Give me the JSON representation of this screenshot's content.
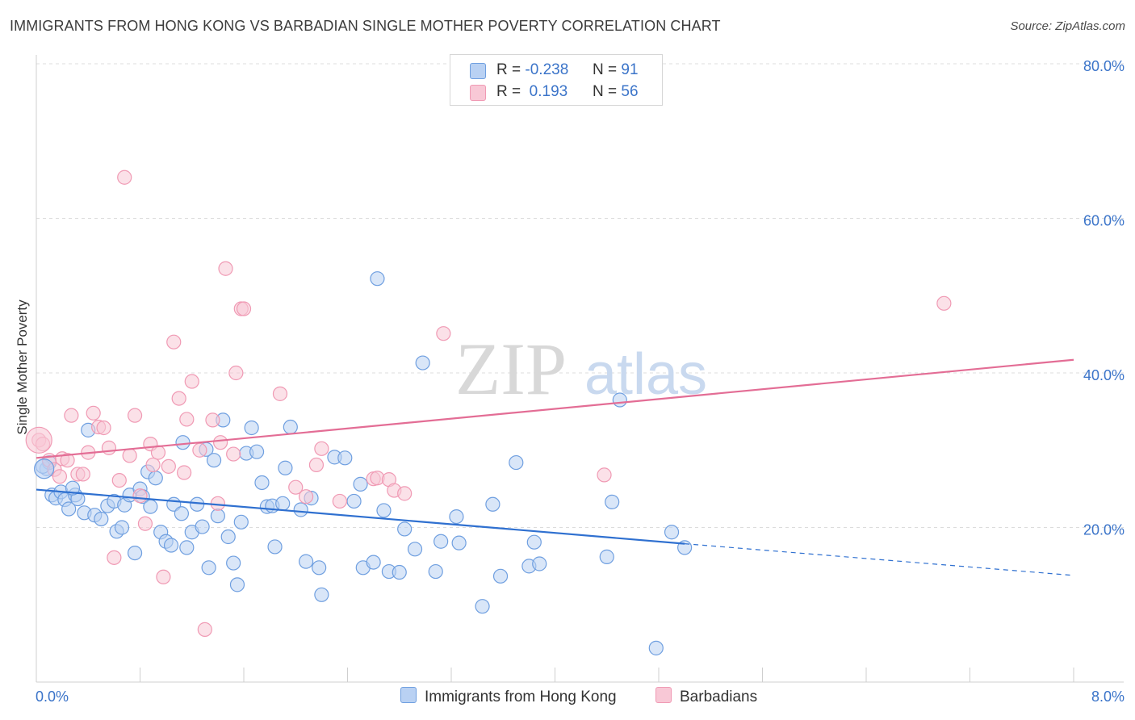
{
  "header": {
    "title": "IMMIGRANTS FROM HONG KONG VS BARBADIAN SINGLE MOTHER POVERTY CORRELATION CHART",
    "source": "Source: ZipAtlas.com"
  },
  "legend_top": {
    "rows": [
      {
        "r_label": "R =",
        "r_value": "-0.238",
        "n_label": "N =",
        "n_value": "91"
      },
      {
        "r_label": "R =",
        "r_value": "0.193",
        "n_label": "N =",
        "n_value": "56"
      }
    ]
  },
  "watermark": {
    "zip": "ZIP",
    "atlas": "atlas"
  },
  "chart_data": {
    "type": "scatter",
    "title": "IMMIGRANTS FROM HONG KONG VS BARBADIAN SINGLE MOTHER POVERTY CORRELATION CHART",
    "ylabel": "Single Mother Poverty",
    "xlabel": "",
    "xlim": [
      0,
      8
    ],
    "ylim": [
      0,
      80
    ],
    "x_tick_labels": [
      "0.0%",
      "8.0%"
    ],
    "y_tick_labels": [
      "20.0%",
      "40.0%",
      "60.0%",
      "80.0%"
    ],
    "y_ticks": [
      20,
      40,
      60,
      80
    ],
    "grid": true,
    "legend_position": "top-center",
    "series": [
      {
        "name": "Immigrants from Hong Kong",
        "color": "#6f9fe0",
        "fill": "#b9d1f3",
        "trend": {
          "x0": 0,
          "y0": 24.9,
          "x1": 5.0,
          "y1": 17.9,
          "dashed_to_x": 8.0,
          "dashed_to_y": 13.8
        },
        "trend_color": "#2f70d0",
        "points": [
          [
            0.08,
            27.6
          ],
          [
            0.12,
            24.2
          ],
          [
            0.15,
            23.8
          ],
          [
            0.19,
            24.6
          ],
          [
            0.22,
            23.6
          ],
          [
            0.25,
            22.4
          ],
          [
            0.3,
            24.2
          ],
          [
            0.32,
            23.7
          ],
          [
            0.37,
            21.9
          ],
          [
            0.4,
            32.6
          ],
          [
            0.45,
            21.6
          ],
          [
            0.5,
            21.1
          ],
          [
            0.55,
            22.8
          ],
          [
            0.6,
            23.4
          ],
          [
            0.62,
            19.5
          ],
          [
            0.66,
            20.0
          ],
          [
            0.68,
            22.9
          ],
          [
            0.72,
            24.2
          ],
          [
            0.76,
            16.7
          ],
          [
            0.8,
            25.0
          ],
          [
            0.82,
            24.0
          ],
          [
            0.86,
            27.2
          ],
          [
            0.88,
            22.7
          ],
          [
            0.92,
            26.4
          ],
          [
            0.96,
            19.4
          ],
          [
            1.0,
            18.2
          ],
          [
            1.04,
            17.7
          ],
          [
            1.06,
            23.0
          ],
          [
            1.12,
            21.8
          ],
          [
            1.13,
            31.0
          ],
          [
            1.16,
            17.4
          ],
          [
            1.2,
            19.4
          ],
          [
            1.24,
            23.0
          ],
          [
            1.28,
            20.1
          ],
          [
            1.31,
            30.1
          ],
          [
            1.33,
            14.8
          ],
          [
            1.37,
            28.7
          ],
          [
            1.4,
            21.5
          ],
          [
            1.44,
            33.9
          ],
          [
            1.48,
            18.8
          ],
          [
            1.52,
            15.4
          ],
          [
            1.55,
            12.6
          ],
          [
            1.58,
            20.7
          ],
          [
            1.62,
            29.6
          ],
          [
            1.66,
            32.9
          ],
          [
            1.7,
            29.8
          ],
          [
            1.74,
            25.8
          ],
          [
            1.78,
            22.7
          ],
          [
            1.82,
            22.8
          ],
          [
            1.84,
            17.5
          ],
          [
            1.9,
            23.1
          ],
          [
            1.92,
            27.7
          ],
          [
            1.96,
            33.0
          ],
          [
            2.04,
            22.3
          ],
          [
            2.08,
            15.6
          ],
          [
            2.12,
            23.8
          ],
          [
            2.18,
            14.8
          ],
          [
            2.2,
            11.3
          ],
          [
            2.3,
            29.1
          ],
          [
            2.38,
            29.0
          ],
          [
            2.45,
            23.4
          ],
          [
            2.5,
            25.6
          ],
          [
            2.52,
            14.8
          ],
          [
            2.6,
            15.5
          ],
          [
            2.63,
            52.2
          ],
          [
            2.68,
            22.2
          ],
          [
            2.72,
            14.3
          ],
          [
            2.8,
            14.2
          ],
          [
            2.84,
            19.8
          ],
          [
            2.92,
            17.2
          ],
          [
            2.98,
            41.3
          ],
          [
            3.08,
            14.3
          ],
          [
            3.12,
            18.2
          ],
          [
            3.24,
            21.4
          ],
          [
            3.26,
            18.0
          ],
          [
            3.44,
            9.8
          ],
          [
            3.52,
            23.0
          ],
          [
            3.58,
            13.7
          ],
          [
            3.7,
            28.4
          ],
          [
            3.8,
            15.0
          ],
          [
            3.84,
            18.1
          ],
          [
            3.88,
            15.3
          ],
          [
            4.4,
            16.2
          ],
          [
            4.44,
            23.3
          ],
          [
            4.5,
            36.5
          ],
          [
            4.78,
            4.4
          ],
          [
            4.9,
            19.4
          ],
          [
            5.0,
            17.4
          ],
          [
            0.1,
            28.4
          ],
          [
            0.05,
            27.9
          ],
          [
            0.28,
            25.1
          ]
        ]
      },
      {
        "name": "Barbadians",
        "color": "#f09ab4",
        "fill": "#f8c8d6",
        "trend": {
          "x0": 0,
          "y0": 29.0,
          "x1": 8.0,
          "y1": 41.7
        },
        "trend_color": "#e36d95",
        "points": [
          [
            0.02,
            31.3
          ],
          [
            0.05,
            30.8
          ],
          [
            0.1,
            28.7
          ],
          [
            0.14,
            27.5
          ],
          [
            0.18,
            26.6
          ],
          [
            0.2,
            28.9
          ],
          [
            0.24,
            28.7
          ],
          [
            0.27,
            34.5
          ],
          [
            0.32,
            26.9
          ],
          [
            0.36,
            26.9
          ],
          [
            0.4,
            29.7
          ],
          [
            0.44,
            34.8
          ],
          [
            0.48,
            33.0
          ],
          [
            0.52,
            32.9
          ],
          [
            0.56,
            30.3
          ],
          [
            0.6,
            16.1
          ],
          [
            0.64,
            26.1
          ],
          [
            0.68,
            65.3
          ],
          [
            0.72,
            29.3
          ],
          [
            0.76,
            34.5
          ],
          [
            0.8,
            24.1
          ],
          [
            0.84,
            20.5
          ],
          [
            0.88,
            30.8
          ],
          [
            0.9,
            28.1
          ],
          [
            0.94,
            29.7
          ],
          [
            0.98,
            13.6
          ],
          [
            1.02,
            27.9
          ],
          [
            1.06,
            44.0
          ],
          [
            1.1,
            36.7
          ],
          [
            1.14,
            27.1
          ],
          [
            1.16,
            34.0
          ],
          [
            1.2,
            38.9
          ],
          [
            1.26,
            30.0
          ],
          [
            1.3,
            6.8
          ],
          [
            1.36,
            33.9
          ],
          [
            1.4,
            23.1
          ],
          [
            1.42,
            31.0
          ],
          [
            1.46,
            53.5
          ],
          [
            1.52,
            29.5
          ],
          [
            1.54,
            40.0
          ],
          [
            1.58,
            48.3
          ],
          [
            1.6,
            48.3
          ],
          [
            1.88,
            37.3
          ],
          [
            2.0,
            25.2
          ],
          [
            2.08,
            24.0
          ],
          [
            2.16,
            28.1
          ],
          [
            2.2,
            30.2
          ],
          [
            2.34,
            23.4
          ],
          [
            2.6,
            26.3
          ],
          [
            2.63,
            26.4
          ],
          [
            2.72,
            26.2
          ],
          [
            2.76,
            24.8
          ],
          [
            2.84,
            24.4
          ],
          [
            3.14,
            45.1
          ],
          [
            4.38,
            26.8
          ],
          [
            7.0,
            49.0
          ]
        ]
      }
    ]
  },
  "legend_bottom": {
    "items": [
      {
        "label": "Immigrants from Hong Kong"
      },
      {
        "label": "Barbadians"
      }
    ]
  }
}
